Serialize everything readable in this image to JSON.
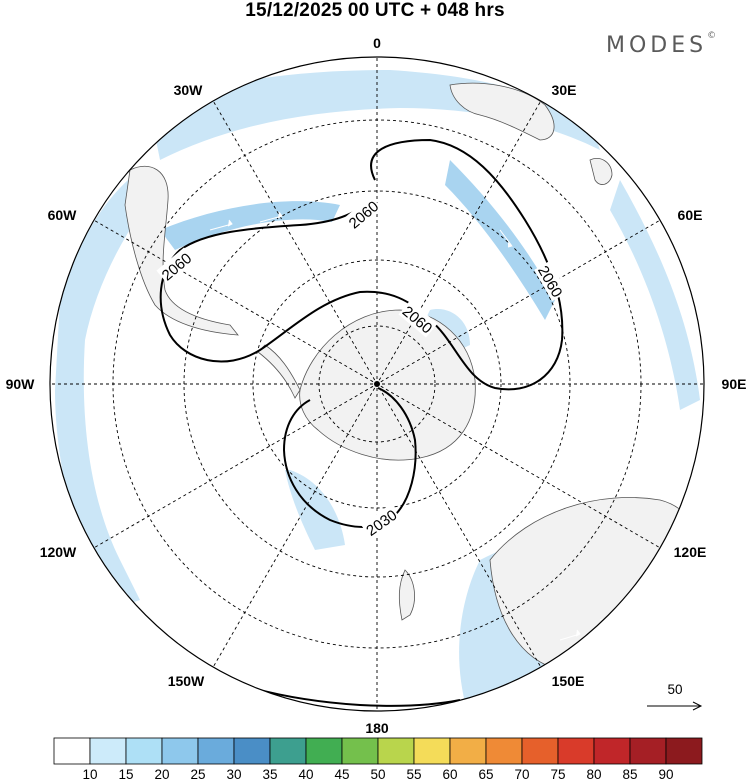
{
  "title": "15/12/2025  00 UTC  + 048 hrs",
  "brand": "MODES",
  "brand_mark": "©",
  "map": {
    "projection": "polar-stereographic-south",
    "longitude_labels": [
      "0",
      "30E",
      "60E",
      "90E",
      "120E",
      "150E",
      "180",
      "150W",
      "120W",
      "90W",
      "60W",
      "30W"
    ],
    "contour_labels": [
      "2060",
      "2060",
      "2060",
      "2060",
      "2030"
    ],
    "colors": {
      "land": "#f2f2f2",
      "wind_light": "#cbe6f7",
      "wind_mid": "#a9d4f0",
      "wind_strong": "#8cc3e8",
      "contour": "#000000",
      "grid": "#000000"
    }
  },
  "reference_vector": {
    "value": "50"
  },
  "colorbar": {
    "labels": [
      "10",
      "15",
      "20",
      "25",
      "30",
      "35",
      "40",
      "45",
      "50",
      "55",
      "60",
      "65",
      "70",
      "75",
      "80",
      "85",
      "90"
    ],
    "colors": [
      "#ffffff",
      "#cdebfa",
      "#aee0f6",
      "#8ec8ec",
      "#6aabdc",
      "#4a8ec6",
      "#3d9f8f",
      "#41ae52",
      "#74c04c",
      "#b9d54c",
      "#f4dc59",
      "#f2ae46",
      "#ef8a36",
      "#e6602b",
      "#d93b2a",
      "#c02629",
      "#a51f25",
      "#8c1a1e"
    ]
  }
}
